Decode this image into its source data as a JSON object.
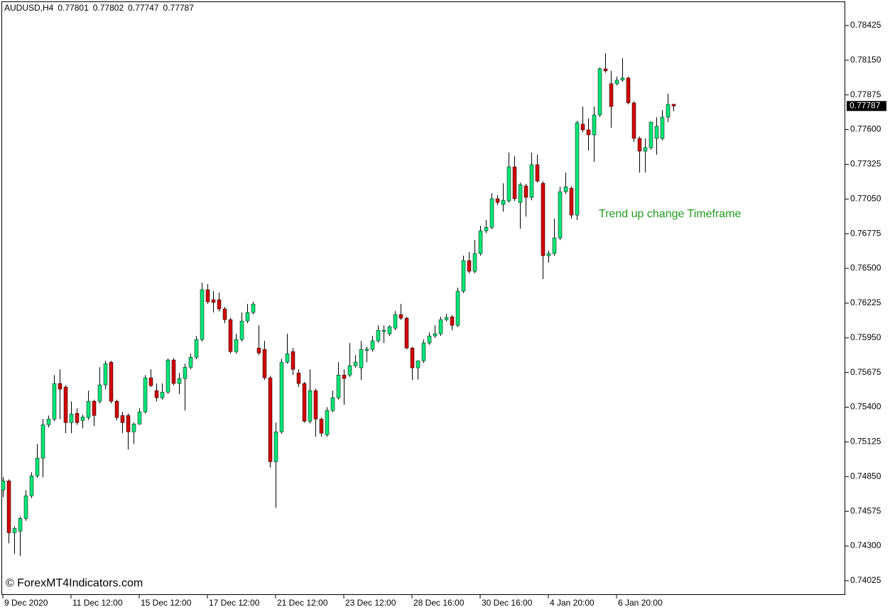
{
  "chart_data": {
    "type": "candlestick",
    "title": "AUDUSD,H4",
    "annotation": "Trend up change Timeframe",
    "watermark": "© ForexMT4Indicators.com",
    "up_color": "#00e676",
    "down_color": "#d40000",
    "wick_color": "#000000",
    "annotation_color": "#1f9a1f",
    "ylim": [
      0.73912,
      0.78616
    ],
    "yticks": [
      0.78425,
      {
        "value": 0.7815,
        "label": "0.78150"
      },
      0.77875,
      {
        "value": 0.776,
        "label": "0.77600"
      },
      0.77325,
      {
        "value": 0.7705,
        "label": "0.77050"
      },
      0.76775,
      {
        "value": 0.765,
        "label": "0.76500"
      },
      0.76225,
      {
        "value": 0.7595,
        "label": "0.75950"
      },
      0.75675,
      {
        "value": 0.754,
        "label": "0.75400"
      },
      0.75125,
      {
        "value": 0.7485,
        "label": "0.74850"
      },
      0.74575,
      {
        "value": 0.743,
        "label": "0.74300"
      },
      0.74025
    ],
    "categories": [
      "9 Dec 2020",
      null,
      null,
      null,
      null,
      null,
      null,
      null,
      null,
      null,
      null,
      null,
      "11 Dec 12:00",
      null,
      null,
      null,
      null,
      null,
      null,
      null,
      null,
      null,
      null,
      null,
      "15 Dec 12:00",
      null,
      null,
      null,
      null,
      null,
      null,
      null,
      null,
      null,
      null,
      null,
      "17 Dec 12:00",
      null,
      null,
      null,
      null,
      null,
      null,
      null,
      null,
      null,
      null,
      null,
      "21 Dec 12:00",
      null,
      null,
      null,
      null,
      null,
      null,
      null,
      null,
      null,
      null,
      null,
      "23 Dec 12:00",
      null,
      null,
      null,
      null,
      null,
      null,
      null,
      null,
      null,
      null,
      null,
      "28 Dec 16:00",
      null,
      null,
      null,
      null,
      null,
      null,
      null,
      null,
      null,
      null,
      null,
      "30 Dec 16:00",
      null,
      null,
      null,
      null,
      null,
      null,
      null,
      null,
      null,
      null,
      null,
      "4 Jan 20:00",
      null,
      null,
      null,
      null,
      null,
      null,
      null,
      null,
      null,
      null,
      null,
      "6 Jan 20:00",
      null,
      null,
      null,
      null,
      null,
      null,
      null,
      null,
      null,
      null
    ],
    "open": [
      0.74743,
      0.74816,
      0.74405,
      0.74417,
      0.74518,
      0.74698,
      0.74856,
      0.74997,
      0.75261,
      0.75306,
      0.75588,
      0.7556,
      0.75278,
      0.75351,
      0.75295,
      0.75318,
      0.75447,
      0.75447,
      0.75577,
      0.75757,
      0.75447,
      0.75334,
      0.75334,
      0.75205,
      0.75267,
      0.75363,
      0.75633,
      0.75531,
      0.75475,
      0.7552,
      0.75774,
      0.75588,
      0.75627,
      0.75717,
      0.75796,
      0.75937,
      0.76331,
      0.76252,
      0.76252,
      0.76179,
      0.76094,
      0.75841,
      0.75937,
      0.76083,
      0.76151,
      0.75869,
      0.75858,
      0.75633,
      0.74968,
      0.75205,
      0.75757,
      0.75841,
      0.75672,
      0.75588,
      0.75289,
      0.75531,
      0.75306,
      0.75182,
      0.75374,
      0.75475,
      0.75655,
      0.75655,
      0.75729,
      0.75712,
      0.7585,
      0.75858,
      0.75926,
      0.75999,
      0.75982,
      0.76027,
      0.76134,
      0.76106,
      0.75869,
      0.75712,
      0.75768,
      0.75909,
      0.75965,
      0.75982,
      0.76094,
      0.76117,
      0.76049,
      0.7632,
      0.76562,
      0.76477,
      0.76618,
      0.76798,
      0.76826,
      0.77052,
      0.77007,
      0.77035,
      0.77305,
      0.77023,
      0.77153,
      0.77063,
      0.77322,
      0.77175,
      0.76601,
      0.76618,
      0.76742,
      0.77108,
      0.77136,
      0.76922,
      0.77643,
      0.77598,
      0.77558,
      0.77716,
      0.78082,
      0.77964,
      0.77964,
      0.77992,
      0.78009,
      0.77812,
      0.7753,
      0.77429,
      0.77457,
      0.7753,
      0.7753,
      0.77699,
      0.77801
    ],
    "high": [
      0.74845,
      0.74828,
      0.74455,
      0.74535,
      0.74743,
      0.74884,
      0.75109,
      0.75306,
      0.75334,
      0.75655,
      0.757,
      0.75575,
      0.75447,
      0.75391,
      0.7534,
      0.75531,
      0.7546,
      0.75717,
      0.75768,
      0.75768,
      0.7546,
      0.75363,
      0.7535,
      0.7528,
      0.75391,
      0.75655,
      0.757,
      0.75588,
      0.75588,
      0.75785,
      0.7579,
      0.75672,
      0.75745,
      0.75824,
      0.75965,
      0.76387,
      0.76376,
      0.7632,
      0.76308,
      0.76195,
      0.7611,
      0.75982,
      0.76151,
      0.76218,
      0.76235,
      0.76049,
      0.75926,
      0.7565,
      0.75278,
      0.75785,
      0.75982,
      0.75869,
      0.757,
      0.756,
      0.757,
      0.75545,
      0.7532,
      0.754,
      0.75531,
      0.75757,
      0.757,
      0.75909,
      0.75813,
      0.75926,
      0.7588,
      0.75965,
      0.76049,
      0.76049,
      0.76049,
      0.76162,
      0.76218,
      0.76117,
      0.7588,
      0.7577,
      0.75937,
      0.75993,
      0.76049,
      0.76117,
      0.7614,
      0.7613,
      0.76348,
      0.76601,
      0.76629,
      0.76725,
      0.76838,
      0.76883,
      0.77097,
      0.7708,
      0.77175,
      0.77418,
      0.77389,
      0.7718,
      0.7717,
      0.77418,
      0.77401,
      0.7719,
      0.7664,
      0.76894,
      0.77147,
      0.7726,
      0.7715,
      0.77671,
      0.77783,
      0.77688,
      0.77783,
      0.78093,
      0.78206,
      0.78065,
      0.7802,
      0.78166,
      0.7802,
      0.77825,
      0.77545,
      0.7753,
      0.7766,
      0.77699,
      0.77755,
      0.77885,
      0.77802
    ],
    "low": [
      0.74687,
      0.74321,
      0.74237,
      0.7422,
      0.745,
      0.7468,
      0.7484,
      0.74845,
      0.7524,
      0.7529,
      0.75306,
      0.75194,
      0.75194,
      0.7526,
      0.75233,
      0.753,
      0.7525,
      0.7543,
      0.75543,
      0.7543,
      0.75295,
      0.75194,
      0.75064,
      0.75109,
      0.75261,
      0.7535,
      0.7556,
      0.75447,
      0.7546,
      0.75505,
      0.75571,
      0.75503,
      0.75374,
      0.757,
      0.7578,
      0.7592,
      0.7622,
      0.76151,
      0.7616,
      0.76066,
      0.75824,
      0.75825,
      0.7592,
      0.76066,
      0.76135,
      0.75813,
      0.75616,
      0.74923,
      0.74603,
      0.7519,
      0.75745,
      0.75655,
      0.7556,
      0.75278,
      0.7527,
      0.75166,
      0.75166,
      0.75166,
      0.7536,
      0.7546,
      0.75419,
      0.7564,
      0.75715,
      0.75616,
      0.75757,
      0.7584,
      0.7591,
      0.75909,
      0.75965,
      0.7601,
      0.7609,
      0.7586,
      0.75616,
      0.7562,
      0.7575,
      0.75895,
      0.7595,
      0.75965,
      0.7608,
      0.7601,
      0.76035,
      0.76305,
      0.7646,
      0.7646,
      0.766,
      0.7678,
      0.7681,
      0.77,
      0.7695,
      0.7702,
      0.77035,
      0.76815,
      0.76911,
      0.7704,
      0.7718,
      0.76415,
      0.76545,
      0.766,
      0.76725,
      0.7709,
      0.76894,
      0.76883,
      0.7758,
      0.77434,
      0.77344,
      0.777,
      0.7805,
      0.77615,
      0.7795,
      0.7798,
      0.778,
      0.77502,
      0.7726,
      0.7726,
      0.7744,
      0.77401,
      0.77513,
      0.7766,
      0.77747
    ],
    "close": [
      0.74816,
      0.74405,
      0.74439,
      0.74518,
      0.74698,
      0.74856,
      0.74997,
      0.75261,
      0.75306,
      0.75588,
      0.75543,
      0.75278,
      0.75346,
      0.75278,
      0.75323,
      0.75447,
      0.75334,
      0.75577,
      0.75745,
      0.75447,
      0.75318,
      0.75278,
      0.75205,
      0.75267,
      0.75363,
      0.75633,
      0.75571,
      0.75475,
      0.7552,
      0.75774,
      0.75588,
      0.75627,
      0.75717,
      0.75796,
      0.75937,
      0.76331,
      0.76235,
      0.7623,
      0.76179,
      0.76094,
      0.75841,
      0.75937,
      0.76083,
      0.76151,
      0.76218,
      0.7583,
      0.75633,
      0.74968,
      0.75205,
      0.75757,
      0.75824,
      0.757,
      0.75588,
      0.75289,
      0.75531,
      0.75306,
      0.75194,
      0.75374,
      0.75475,
      0.75655,
      0.75627,
      0.75729,
      0.75757,
      0.75858,
      0.7586,
      0.75926,
      0.7601,
      0.7601,
      0.76038,
      0.76134,
      0.76106,
      0.75869,
      0.75712,
      0.75768,
      0.75909,
      0.75965,
      0.75982,
      0.76094,
      0.76111,
      0.76049,
      0.7632,
      0.76562,
      0.76477,
      0.76618,
      0.76798,
      0.76826,
      0.77052,
      0.77023,
      0.7704,
      0.77305,
      0.77052,
      0.77164,
      0.77063,
      0.77322,
      0.77192,
      0.76601,
      0.76618,
      0.76742,
      0.77108,
      0.77147,
      0.76922,
      0.77654,
      0.77598,
      0.77558,
      0.77716,
      0.78082,
      0.78065,
      0.77783,
      0.77992,
      0.78009,
      0.77812,
      0.7753,
      0.77429,
      0.77457,
      0.7766,
      0.77626,
      0.77699,
      0.778,
      0.77787
    ]
  }
}
